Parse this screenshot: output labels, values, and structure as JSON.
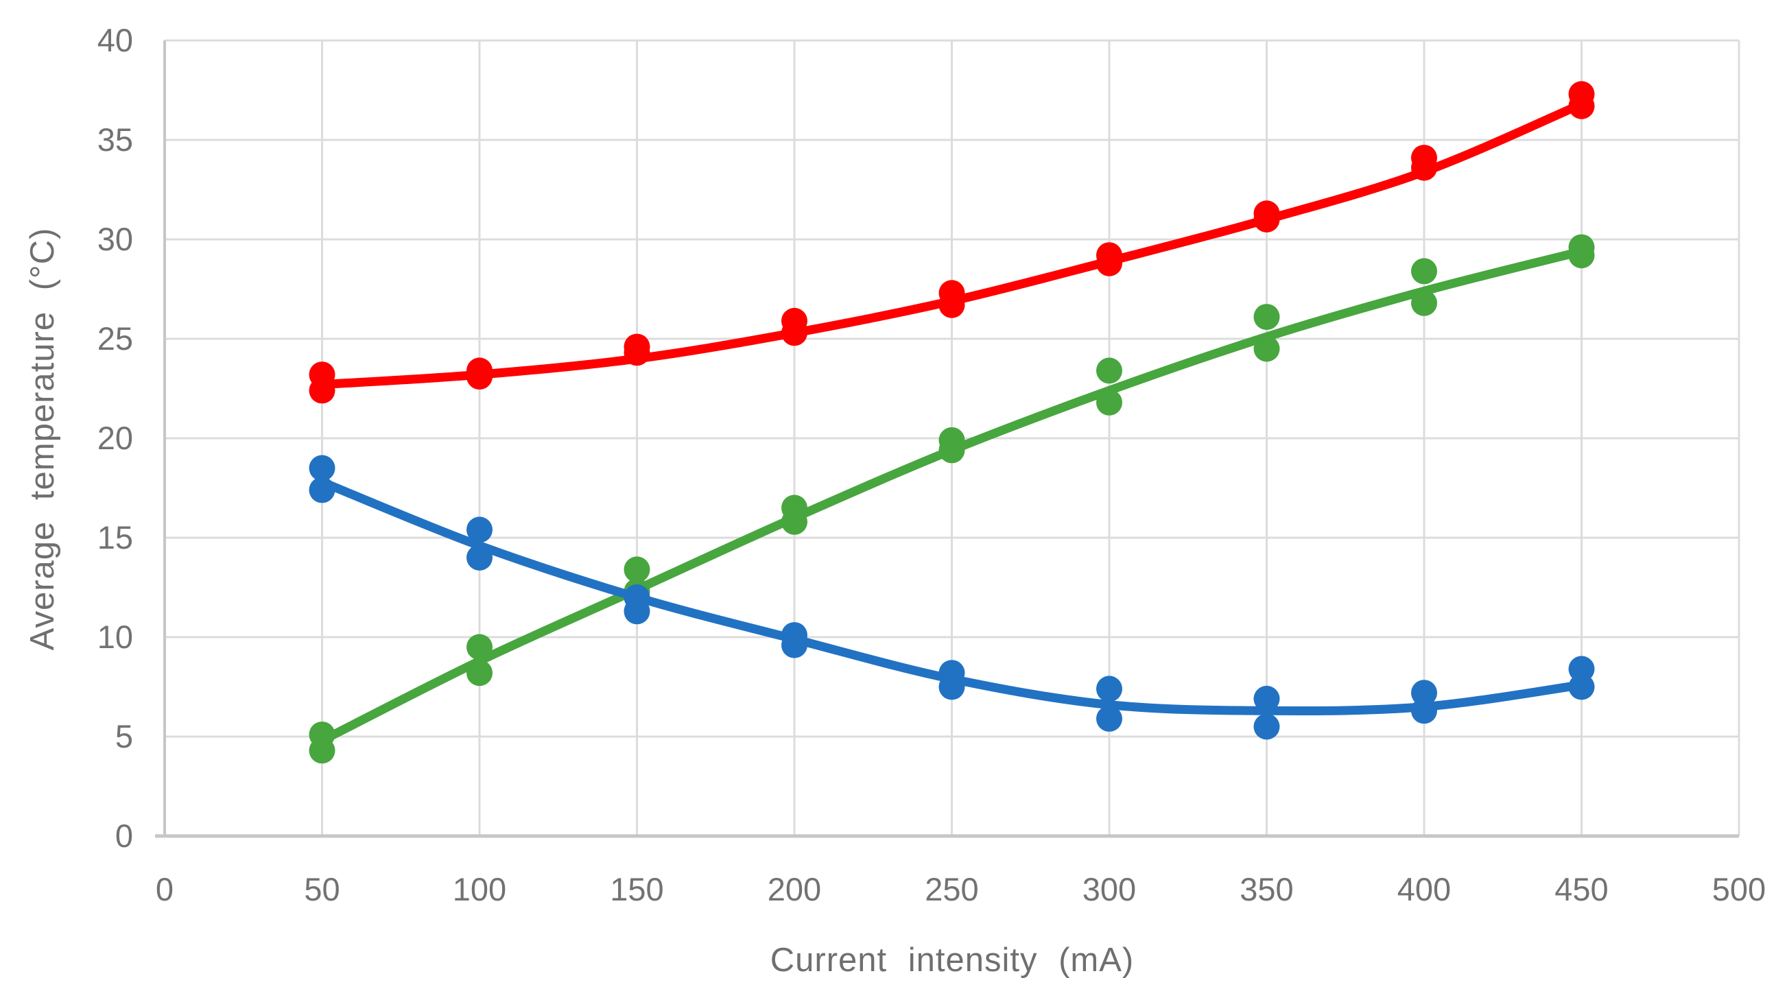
{
  "chart_data": {
    "type": "scatter",
    "title": "",
    "xlabel": "Current  intensity  (mA)",
    "ylabel": "Average temperature (°C)",
    "xlim": [
      0,
      500
    ],
    "ylim": [
      0,
      40
    ],
    "x_ticks": [
      0,
      50,
      100,
      150,
      200,
      250,
      300,
      350,
      400,
      450,
      500
    ],
    "y_ticks": [
      0,
      5,
      10,
      15,
      20,
      25,
      30,
      35,
      40
    ],
    "grid": true,
    "legend": "none",
    "x": [
      50,
      100,
      150,
      200,
      250,
      300,
      350,
      400,
      450
    ],
    "series": [
      {
        "name": "red-series",
        "color": "#fe0000",
        "replicate_1": [
          23.2,
          23.4,
          24.6,
          25.9,
          27.3,
          29.2,
          31.3,
          34.1,
          37.3
        ],
        "replicate_2": [
          22.4,
          23.1,
          24.3,
          25.3,
          26.7,
          28.8,
          31.0,
          33.6,
          36.7
        ],
        "trend": [
          22.7,
          23.2,
          24.0,
          25.3,
          26.9,
          28.9,
          31.0,
          33.4,
          36.8
        ]
      },
      {
        "name": "green-series",
        "color": "#47a63e",
        "replicate_1": [
          5.1,
          9.5,
          13.4,
          16.5,
          19.9,
          23.4,
          26.1,
          28.4,
          29.6
        ],
        "replicate_2": [
          4.3,
          8.2,
          12.3,
          15.8,
          19.4,
          21.8,
          24.5,
          26.8,
          29.2
        ],
        "trend": [
          4.8,
          8.8,
          12.4,
          16.0,
          19.4,
          22.4,
          25.1,
          27.4,
          29.4
        ]
      },
      {
        "name": "blue-series",
        "color": "#2272c3",
        "replicate_1": [
          18.5,
          15.4,
          12.0,
          10.1,
          8.2,
          7.4,
          6.9,
          7.2,
          8.4
        ],
        "replicate_2": [
          17.4,
          14.0,
          11.3,
          9.6,
          7.5,
          5.9,
          5.5,
          6.3,
          7.5
        ],
        "trend": [
          17.8,
          14.6,
          12.0,
          9.9,
          7.9,
          6.6,
          6.3,
          6.5,
          7.6
        ]
      }
    ],
    "style": {
      "gridline_color": "#dcdcdc",
      "axis_line_color": "#c6c6c6",
      "tick_label_color": "#727272"
    }
  }
}
